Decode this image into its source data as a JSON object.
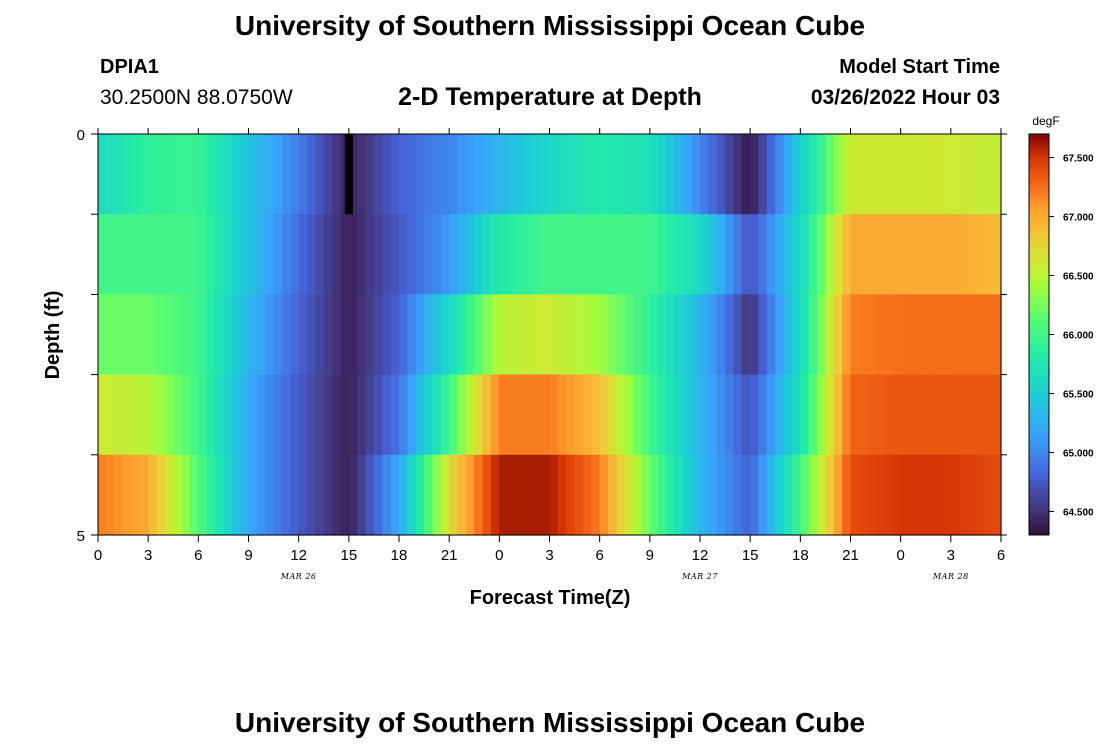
{
  "header": {
    "title": "University of Southern Mississippi Ocean Cube",
    "station_id": "DPIA1",
    "coordinates": "30.2500N  88.0750W",
    "subtitle": "2-D Temperature at Depth",
    "model_start_label": "Model Start Time",
    "model_start_value": "03/26/2022 Hour 03"
  },
  "footer": {
    "title": "University of Southern Mississippi Ocean Cube"
  },
  "chart_data": {
    "type": "heatmap",
    "title": "2-D Temperature at Depth",
    "xlabel": "Forecast Time(Z)",
    "ylabel": "Depth (ft)",
    "x_tick_labels": [
      "0",
      "3",
      "6",
      "9",
      "12",
      "15",
      "18",
      "21",
      "0",
      "3",
      "6",
      "9",
      "12",
      "15",
      "18",
      "21",
      "0",
      "3",
      "6"
    ],
    "x_date_labels": [
      "MAR 26",
      "MAR 27",
      "MAR 28"
    ],
    "x_range_hours": [
      0,
      54
    ],
    "y_tick_labels": [
      "0",
      "5"
    ],
    "ylim": [
      0,
      5
    ],
    "colorbar": {
      "unit": "degF",
      "min": 64.3,
      "max": 67.7,
      "tick_labels": [
        "67.500",
        "67.000",
        "66.500",
        "66.000",
        "65.500",
        "65.000",
        "64.500"
      ],
      "tick_values": [
        67.5,
        67.0,
        66.5,
        66.0,
        65.5,
        65.0,
        64.5
      ]
    },
    "rows": 5,
    "hours": [
      0,
      3,
      6,
      9,
      12,
      15,
      18,
      21,
      24,
      27,
      30,
      33,
      36,
      39,
      42,
      45,
      48,
      51,
      54
    ],
    "values": [
      [
        65.6,
        65.9,
        65.95,
        65.4,
        64.95,
        64.4,
        64.8,
        65.0,
        65.3,
        65.6,
        65.8,
        65.7,
        65.0,
        64.35,
        65.5,
        66.6,
        66.6,
        66.6,
        66.55
      ],
      [
        66.0,
        66.0,
        66.0,
        65.4,
        64.85,
        64.4,
        64.75,
        65.1,
        65.8,
        66.0,
        66.0,
        66.0,
        65.6,
        64.7,
        65.6,
        67.0,
        67.0,
        67.0,
        66.9
      ],
      [
        66.2,
        66.2,
        66.0,
        65.3,
        64.8,
        64.4,
        64.8,
        65.6,
        66.5,
        66.6,
        66.4,
        65.9,
        65.3,
        64.5,
        65.6,
        67.2,
        67.25,
        67.25,
        67.25
      ],
      [
        66.6,
        66.5,
        66.0,
        65.2,
        64.75,
        64.4,
        64.9,
        66.0,
        67.2,
        67.2,
        66.9,
        66.0,
        65.3,
        64.7,
        65.7,
        67.3,
        67.35,
        67.35,
        67.35
      ],
      [
        67.2,
        67.0,
        66.1,
        65.2,
        64.75,
        64.4,
        65.2,
        66.7,
        67.6,
        67.6,
        67.2,
        66.2,
        65.3,
        64.8,
        66.0,
        67.4,
        67.5,
        67.5,
        67.4
      ]
    ],
    "missing_mark": {
      "hour": 15,
      "row": 0
    }
  }
}
